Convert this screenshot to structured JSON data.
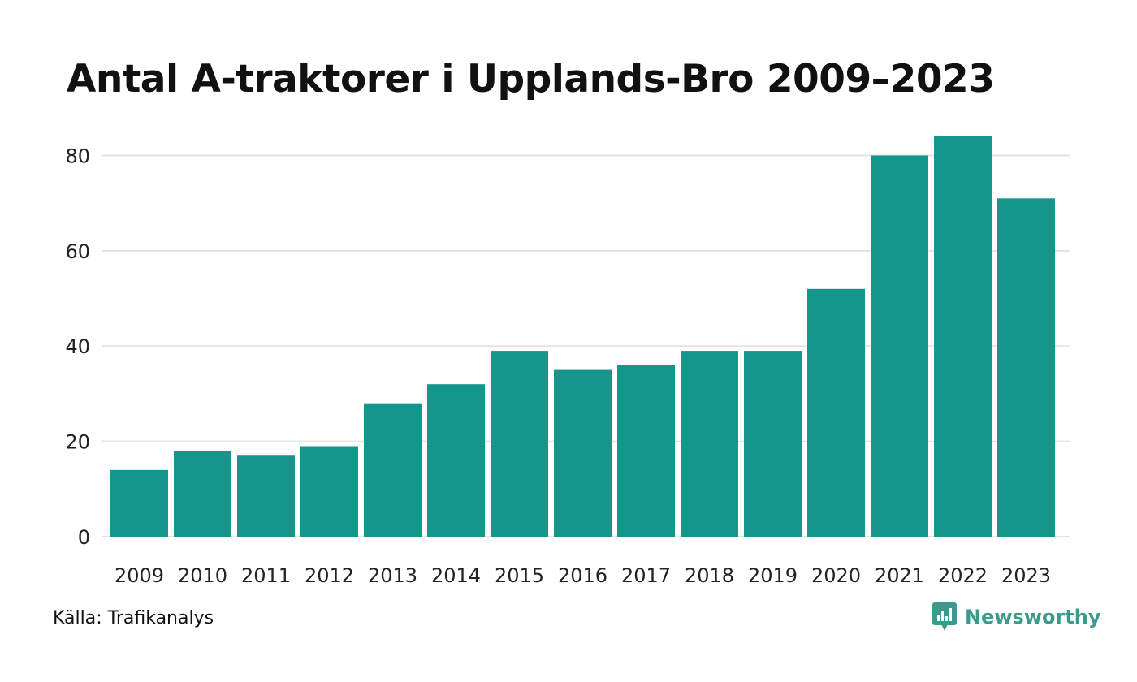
{
  "title": "Antal A-traktorer i Upplands-Bro 2009–2023",
  "source": "Källa: Trafikanalys",
  "brand": {
    "name": "Newsworthy",
    "icon": "newsworthy-logo-icon",
    "color": "#3a9a8c"
  },
  "colors": {
    "bar": "#15968a",
    "grid": "#e3e3e3"
  },
  "chart_data": {
    "type": "bar",
    "title": "Antal A-traktorer i Upplands-Bro 2009–2023",
    "xlabel": "",
    "ylabel": "",
    "categories": [
      "2009",
      "2010",
      "2011",
      "2012",
      "2013",
      "2014",
      "2015",
      "2016",
      "2017",
      "2018",
      "2019",
      "2020",
      "2021",
      "2022",
      "2023"
    ],
    "values": [
      14,
      18,
      17,
      19,
      28,
      32,
      39,
      35,
      36,
      39,
      39,
      52,
      80,
      84,
      71
    ],
    "yticks": [
      0,
      20,
      40,
      60,
      80
    ],
    "ylim": [
      0,
      84
    ],
    "grid": true,
    "legend": "none"
  }
}
